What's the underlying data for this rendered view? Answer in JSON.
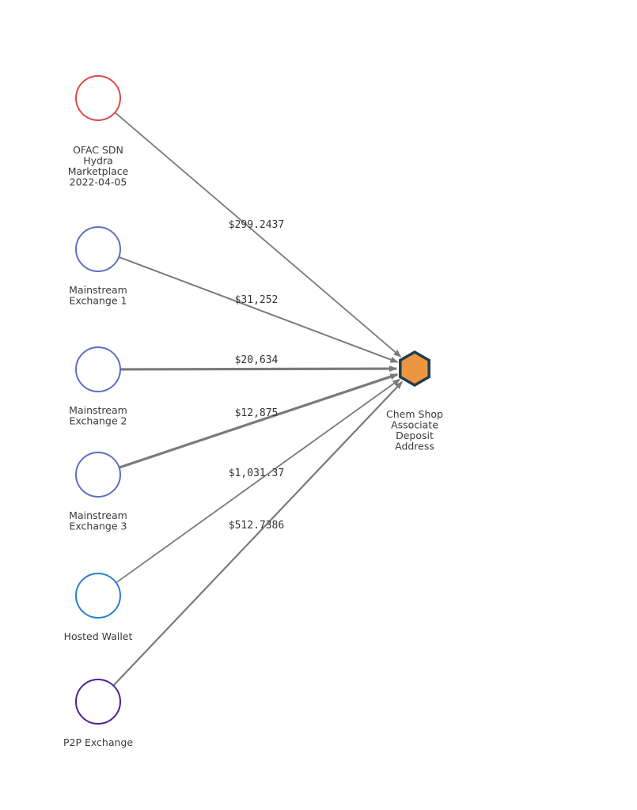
{
  "colors": {
    "edge": "#7a7a7a",
    "target_fill": "#ec9640",
    "target_stroke": "#1f3d52",
    "label": "#3a3a3a"
  },
  "sources": [
    {
      "label_lines": [
        "OFAC SDN",
        "Hydra",
        "Marketplace",
        "2022-04-05"
      ],
      "color": "#e04848",
      "amount": "$299.2437"
    },
    {
      "label_lines": [
        "Mainstream",
        "Exchange 1"
      ],
      "color": "#5e6ec4",
      "amount": "$31,252"
    },
    {
      "label_lines": [
        "Mainstream",
        "Exchange 2"
      ],
      "color": "#5e6ec4",
      "amount": "$20,634"
    },
    {
      "label_lines": [
        "Mainstream",
        "Exchange 3"
      ],
      "color": "#5e6ec4",
      "amount": "$12,875"
    },
    {
      "label_lines": [
        "Hosted Wallet"
      ],
      "color": "#2a7fd0",
      "amount": "$1,031.37"
    },
    {
      "label_lines": [
        "P2P Exchange"
      ],
      "color": "#4a2396",
      "amount": "$512.7386"
    }
  ],
  "target": {
    "label_lines": [
      "Chem Shop",
      "Associate",
      "Deposit",
      "Address"
    ],
    "shape": "hexagon"
  }
}
